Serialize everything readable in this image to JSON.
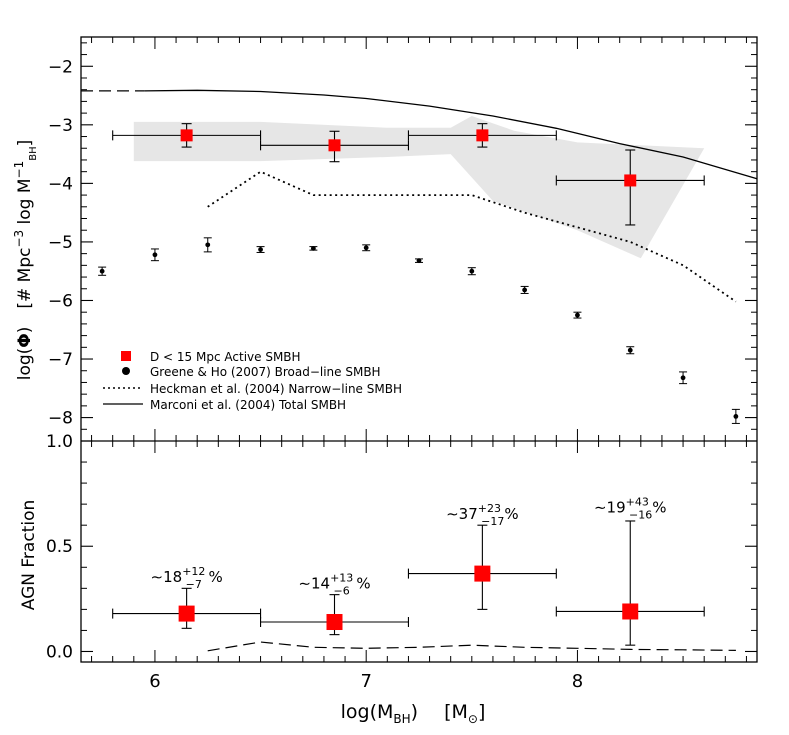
{
  "chart_data": [
    {
      "type": "scatter",
      "panel": "top",
      "ylabel_parts": {
        "log": "log(",
        "phi": "Φ",
        "close": ")",
        "units": "[# Mpc",
        "exp1": "−3",
        "mid": " log M",
        "exp2": "−1",
        "sub": "BH",
        "end": "]"
      },
      "xlim": [
        5.65,
        8.85
      ],
      "ylim": [
        -8.4,
        -1.5
      ],
      "yticks": [
        -2,
        -3,
        -4,
        -5,
        -6,
        -7,
        -8
      ],
      "ytick_labels": [
        "−2",
        "−3",
        "−4",
        "−5",
        "−6",
        "−7",
        "−8"
      ],
      "legend_position": "lower-left",
      "series": [
        {
          "name": "D < 15 Mpc Active SMBH",
          "marker": "square",
          "color": "#ff0000",
          "points": [
            {
              "x": 6.15,
              "y": -3.18,
              "xerr": [
                0.35,
                0.35
              ],
              "yerr": [
                0.2,
                0.2
              ]
            },
            {
              "x": 6.85,
              "y": -3.35,
              "xerr": [
                0.35,
                0.35
              ],
              "yerr": [
                0.28,
                0.24
              ]
            },
            {
              "x": 7.55,
              "y": -3.18,
              "xerr": [
                0.35,
                0.35
              ],
              "yerr": [
                0.2,
                0.2
              ]
            },
            {
              "x": 8.25,
              "y": -3.95,
              "xerr": [
                0.35,
                0.35
              ],
              "yerr": [
                0.76,
                0.52
              ]
            }
          ]
        },
        {
          "name": "Greene & Ho (2007) Broad−line SMBH",
          "marker": "circle",
          "color": "#000000",
          "points": [
            {
              "x": 5.75,
              "y": -5.5,
              "yerr": 0.07
            },
            {
              "x": 6.0,
              "y": -5.22,
              "yerr": 0.1
            },
            {
              "x": 6.25,
              "y": -5.05,
              "yerr": 0.12
            },
            {
              "x": 6.5,
              "y": -5.13,
              "yerr": 0.05
            },
            {
              "x": 6.75,
              "y": -5.11,
              "yerr": 0.03
            },
            {
              "x": 7.0,
              "y": -5.1,
              "yerr": 0.05
            },
            {
              "x": 7.25,
              "y": -5.32,
              "yerr": 0.03
            },
            {
              "x": 7.5,
              "y": -5.5,
              "yerr": 0.06
            },
            {
              "x": 7.75,
              "y": -5.82,
              "yerr": 0.06
            },
            {
              "x": 8.0,
              "y": -6.25,
              "yerr": 0.05
            },
            {
              "x": 8.25,
              "y": -6.85,
              "yerr": 0.06
            },
            {
              "x": 8.5,
              "y": -7.32,
              "yerr": 0.1
            },
            {
              "x": 8.75,
              "y": -7.98,
              "yerr": 0.12
            }
          ]
        },
        {
          "name": "Heckman et al. (2004) Narrow−line SMBH",
          "style": "dotted",
          "x": [
            6.25,
            6.5,
            6.75,
            7.0,
            7.25,
            7.5,
            7.75,
            8.0,
            8.25,
            8.5,
            8.75
          ],
          "y": [
            -4.4,
            -3.8,
            -4.2,
            -4.2,
            -4.2,
            -4.2,
            -4.5,
            -4.75,
            -5.0,
            -5.4,
            -6.02
          ]
        },
        {
          "name": "Marconi et al. (2004) Total SMBH",
          "style": "solid",
          "x": [
            5.95,
            6.2,
            6.5,
            6.8,
            7.0,
            7.3,
            7.6,
            7.9,
            8.2,
            8.5,
            8.85
          ],
          "y": [
            -2.42,
            -2.41,
            -2.43,
            -2.49,
            -2.55,
            -2.68,
            -2.85,
            -3.06,
            -3.32,
            -3.55,
            -3.92
          ]
        },
        {
          "style": "dashed",
          "x": [
            5.65,
            5.95
          ],
          "y": [
            -2.42,
            -2.42
          ]
        },
        {
          "style": "band",
          "upper": {
            "x": [
              5.9,
              6.5,
              7.1,
              7.4,
              7.5,
              7.7,
              8.0,
              8.6
            ],
            "y": [
              -2.95,
              -2.95,
              -3.05,
              -3.05,
              -2.85,
              -3.1,
              -3.3,
              -3.4
            ]
          },
          "lower": {
            "x": [
              5.9,
              6.5,
              7.1,
              7.4,
              7.6,
              8.0,
              8.3,
              8.6
            ],
            "y": [
              -3.62,
              -3.62,
              -3.55,
              -3.5,
              -4.3,
              -4.8,
              -5.28,
              -3.4
            ]
          }
        }
      ]
    },
    {
      "type": "scatter",
      "panel": "bottom",
      "ylabel": "AGN Fraction",
      "xlabel_parts": {
        "log": "log(M",
        "sub": "BH",
        "close": ")",
        "units": "[M",
        "sunsub": "⊙",
        "end": "]"
      },
      "xlim": [
        5.65,
        8.85
      ],
      "ylim": [
        -0.05,
        1.0
      ],
      "xticks": [
        6,
        7,
        8
      ],
      "xtick_labels": [
        "6",
        "7",
        "8"
      ],
      "yticks": [
        0.0,
        0.5,
        1.0
      ],
      "ytick_labels": [
        "0.0",
        "0.5",
        "1.0"
      ],
      "series": [
        {
          "marker": "square",
          "color": "#ff0000",
          "points": [
            {
              "x": 6.15,
              "y": 0.18,
              "xerr": [
                0.35,
                0.35
              ],
              "yerr": [
                0.07,
                0.12
              ]
            },
            {
              "x": 6.85,
              "y": 0.14,
              "xerr": [
                0.35,
                0.35
              ],
              "yerr": [
                0.06,
                0.13
              ]
            },
            {
              "x": 7.55,
              "y": 0.37,
              "xerr": [
                0.35,
                0.35
              ],
              "yerr": [
                0.17,
                0.23
              ]
            },
            {
              "x": 8.25,
              "y": 0.19,
              "xerr": [
                0.35,
                0.35
              ],
              "yerr": [
                0.16,
                0.43
              ]
            }
          ]
        },
        {
          "style": "dashed",
          "x": [
            6.25,
            6.5,
            6.75,
            7.0,
            7.25,
            7.5,
            7.75,
            8.0,
            8.25,
            8.5,
            8.75
          ],
          "y": [
            0.003,
            0.045,
            0.02,
            0.015,
            0.02,
            0.03,
            0.02,
            0.015,
            0.01,
            0.008,
            0.005
          ]
        }
      ],
      "annotations": [
        {
          "x": 6.15,
          "y": 0.33,
          "prefix": "∼18",
          "sup": "+12",
          "sub": "−7",
          "suffix": "%"
        },
        {
          "x": 6.85,
          "y": 0.3,
          "prefix": "∼14",
          "sup": "+13",
          "sub": "−6",
          "suffix": "%"
        },
        {
          "x": 7.55,
          "y": 0.63,
          "prefix": "∼37",
          "sup": "+23",
          "sub": "−17",
          "suffix": "%"
        },
        {
          "x": 8.25,
          "y": 0.66,
          "prefix": "∼19",
          "sup": "+43",
          "sub": "−16",
          "suffix": "%"
        }
      ]
    }
  ]
}
